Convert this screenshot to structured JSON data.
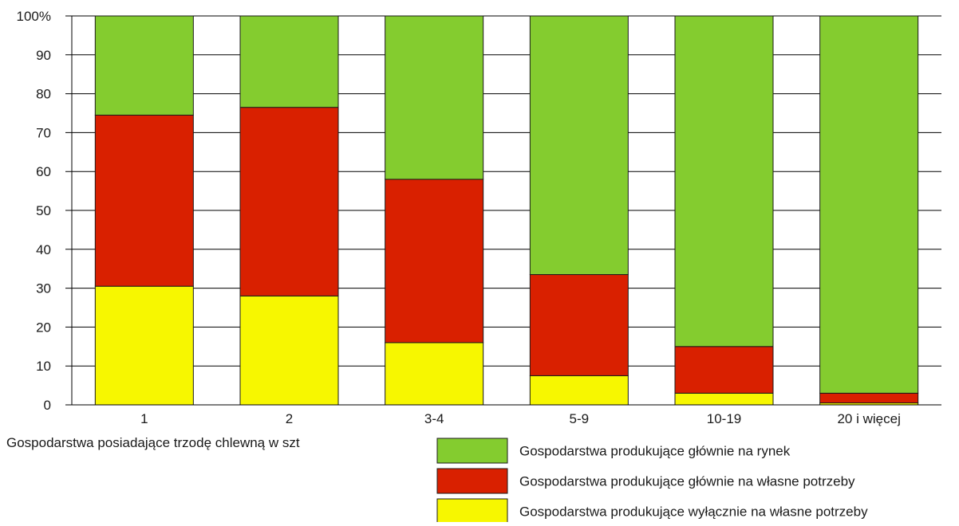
{
  "chart_data": {
    "type": "bar",
    "stacked": true,
    "title": "",
    "xlabel": "Gospodarstwa posiadające trzodę chlewną w szt",
    "ylabel": "",
    "ylim": [
      0,
      100
    ],
    "y_ticks": [
      "0",
      "10",
      "20",
      "30",
      "40",
      "50",
      "60",
      "70",
      "80",
      "90",
      "100%"
    ],
    "grid": true,
    "legend_position": "bottom-right",
    "categories": [
      "1",
      "2",
      "3-4",
      "5-9",
      "10-19",
      "20 i więcej"
    ],
    "series": [
      {
        "name": "Gospodarstwa produkujące wyłącznie na własne potrzeby",
        "color": "#f7f700",
        "values": [
          30.5,
          28,
          16,
          7.5,
          3,
          0.5
        ]
      },
      {
        "name": "Gospodarstwa produkujące głównie na własne potrzeby",
        "color": "#d92000",
        "values": [
          44,
          48.5,
          42,
          26,
          12,
          2.5
        ]
      },
      {
        "name": "Gospodarstwa produkujące głównie na rynek",
        "color": "#84cc2f",
        "values": [
          25.5,
          23.5,
          42,
          66.5,
          85,
          97
        ]
      }
    ],
    "legend_order": [
      2,
      1,
      0
    ]
  }
}
